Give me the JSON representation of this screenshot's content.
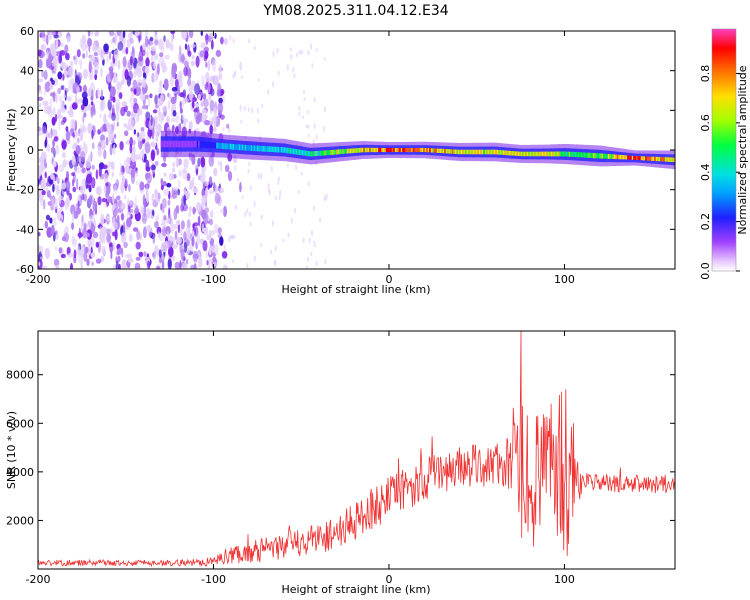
{
  "title": "YM08.2025.311.04.12.E34",
  "chart_data": [
    {
      "type": "heatmap",
      "name": "spectrogram",
      "xlabel": "Height of straight line (km)",
      "ylabel": "Frequency (Hz)",
      "xlim": [
        -200,
        163
      ],
      "ylim": [
        -60,
        60
      ],
      "xticks": [
        "-200",
        "-100",
        "0",
        "100"
      ],
      "yticks": [
        "60",
        "40",
        "20",
        "0",
        "-20",
        "-40",
        "-60"
      ],
      "noise_region_x": [
        -200,
        -95
      ],
      "ridge": {
        "x": [
          -130,
          -110,
          -95,
          -80,
          -60,
          -45,
          -30,
          -15,
          0,
          20,
          40,
          60,
          75,
          90,
          100,
          120,
          140,
          163
        ],
        "center_hz": [
          3,
          3,
          2,
          1,
          0,
          -2,
          -1,
          0,
          0,
          0,
          -1,
          -1,
          -2,
          -2,
          -2,
          -3,
          -4,
          -5
        ],
        "amplitude": [
          0.15,
          0.2,
          0.4,
          0.4,
          0.45,
          0.55,
          0.65,
          0.75,
          0.9,
          0.85,
          0.75,
          0.7,
          0.75,
          0.7,
          0.6,
          0.55,
          0.95,
          0.7
        ]
      },
      "colorbar": {
        "label": "Normalized spectral amplitude",
        "ticks": [
          "0.0",
          "0.2",
          "0.4",
          "0.6",
          "0.8"
        ],
        "range": [
          0,
          0.98
        ]
      }
    },
    {
      "type": "line",
      "name": "snr",
      "xlabel": "Height of straight line (km)",
      "ylabel": "SNR (10 * v/v)",
      "xlim": [
        -200,
        163
      ],
      "ylim": [
        0,
        9800
      ],
      "xticks": [
        "-200",
        "-100",
        "0",
        "100"
      ],
      "yticks": [
        "2000",
        "4000",
        "6000",
        "8000"
      ],
      "color": "#f03232",
      "envelope": {
        "x": [
          -200,
          -120,
          -100,
          -90,
          -70,
          -50,
          -30,
          -20,
          -10,
          0,
          10,
          20,
          30,
          40,
          60,
          70,
          75,
          80,
          90,
          95,
          100,
          105,
          110,
          130,
          163
        ],
        "mean": [
          250,
          250,
          300,
          600,
          800,
          1100,
          1500,
          1900,
          2500,
          2900,
          3300,
          3700,
          4000,
          4200,
          4300,
          4300,
          4200,
          3600,
          4300,
          4500,
          4300,
          3700,
          3600,
          3500,
          3500
        ],
        "amp": [
          120,
          130,
          180,
          400,
          500,
          600,
          700,
          800,
          900,
          900,
          900,
          900,
          900,
          900,
          900,
          1200,
          3000,
          3200,
          2000,
          3500,
          4500,
          2000,
          400,
          350,
          400
        ]
      }
    }
  ]
}
